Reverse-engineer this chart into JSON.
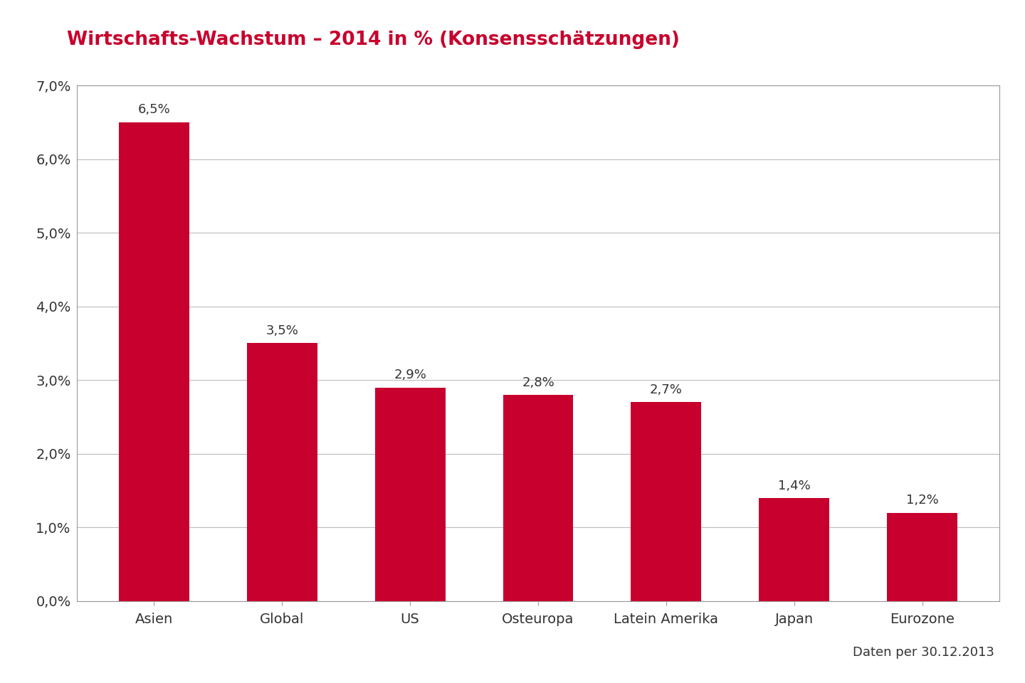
{
  "title": "Wirtschafts-Wachstum – 2014 in % (Konsensschätzungen)",
  "categories": [
    "Asien",
    "Global",
    "US",
    "Osteuropa",
    "Latein Amerika",
    "Japan",
    "Eurozone"
  ],
  "values": [
    0.065,
    0.035,
    0.029,
    0.028,
    0.027,
    0.014,
    0.012
  ],
  "labels": [
    "6,5%",
    "3,5%",
    "2,9%",
    "2,8%",
    "2,7%",
    "1,4%",
    "1,2%"
  ],
  "bar_color": "#C8002D",
  "title_color": "#C8002D",
  "background_color": "#FFFFFF",
  "plot_bg_color": "#FFFFFF",
  "grid_color": "#BBBBBB",
  "tick_color": "#333333",
  "label_color": "#333333",
  "ylim": [
    0,
    0.07
  ],
  "yticks": [
    0.0,
    0.01,
    0.02,
    0.03,
    0.04,
    0.05,
    0.06,
    0.07
  ],
  "ytick_labels": [
    "0,0%",
    "1,0%",
    "2,0%",
    "3,0%",
    "4,0%",
    "5,0%",
    "6,0%",
    "7,0%"
  ],
  "footnote": "Daten per 30.12.2013",
  "title_fontsize": 19,
  "label_fontsize": 13,
  "tick_fontsize": 14,
  "footnote_fontsize": 13,
  "bar_width": 0.55,
  "box_color": "#999999"
}
